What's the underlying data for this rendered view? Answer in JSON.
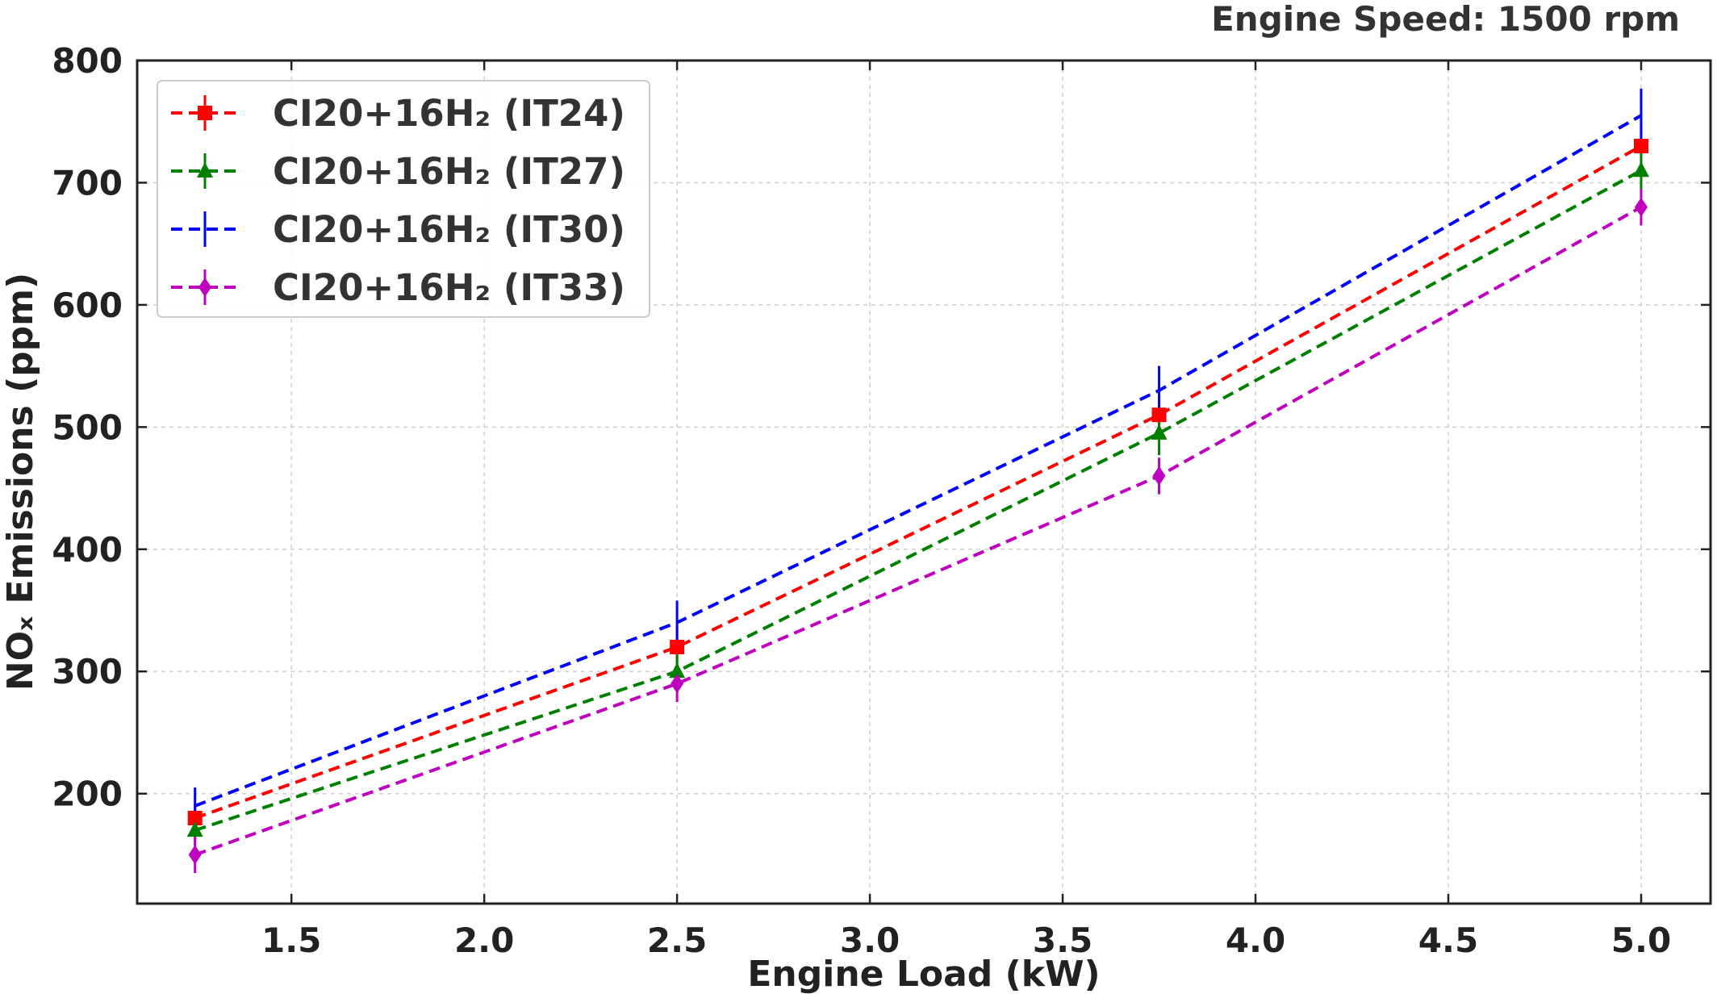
{
  "chart_data": {
    "type": "line",
    "annotation": "Engine Speed: 1500 rpm",
    "xlabel": "Engine Load (kW)",
    "ylabel": "NOₓ Emissions (ppm)",
    "xlim": [
      1.1,
      5.18
    ],
    "ylim": [
      110,
      800
    ],
    "xticks": [
      "1.5",
      "2.0",
      "2.5",
      "3.0",
      "3.5",
      "4.0",
      "4.5",
      "5.0"
    ],
    "yticks": [
      "200",
      "300",
      "400",
      "500",
      "600",
      "700",
      "800"
    ],
    "grid": true,
    "legend_position": "top-left",
    "x": [
      1.25,
      2.5,
      3.75,
      5.0
    ],
    "series": [
      {
        "name": "CI20+16H₂ (IT24)",
        "color": "#ff0000",
        "marker": "square",
        "values": [
          180,
          320,
          510,
          730
        ],
        "errors": [
          12,
          18,
          20,
          22
        ]
      },
      {
        "name": "CI20+16H₂ (IT27)",
        "color": "#008000",
        "marker": "triangle",
        "values": [
          170,
          300,
          495,
          710
        ],
        "errors": [
          12,
          15,
          18,
          20
        ]
      },
      {
        "name": "CI20+16H₂ (IT30)",
        "color": "#0000ff",
        "marker": "none",
        "values": [
          190,
          340,
          530,
          755
        ],
        "errors": [
          15,
          18,
          20,
          22
        ]
      },
      {
        "name": "CI20+16H₂ (IT33)",
        "color": "#bf00bf",
        "marker": "diamond",
        "values": [
          150,
          290,
          460,
          680
        ],
        "errors": [
          15,
          15,
          15,
          15
        ]
      }
    ]
  }
}
